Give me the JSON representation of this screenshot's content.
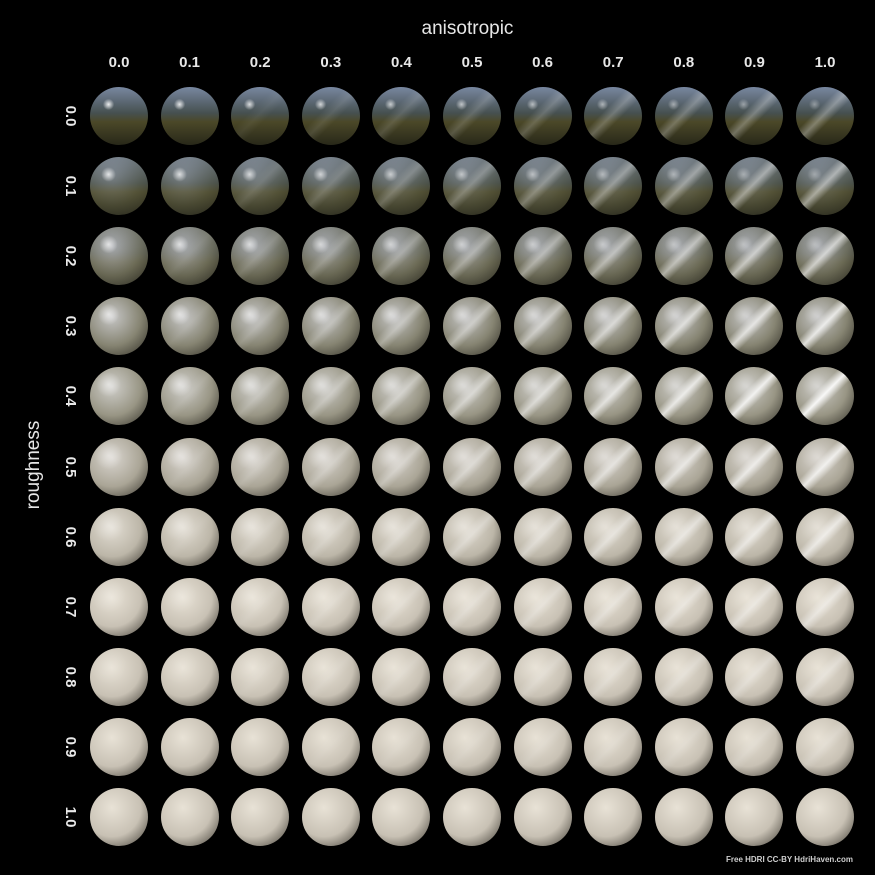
{
  "title": "anisotropic",
  "ylabel": "roughness",
  "anisotropic_values": [
    "0.0",
    "0.1",
    "0.2",
    "0.3",
    "0.4",
    "0.5",
    "0.6",
    "0.7",
    "0.8",
    "0.9",
    "1.0"
  ],
  "roughness_values": [
    "0.0",
    "0.1",
    "0.2",
    "0.3",
    "0.4",
    "0.5",
    "0.6",
    "0.7",
    "0.8",
    "0.9",
    "1.0"
  ],
  "credit": "Free HDRI CC-BY HdriHaven.com",
  "colors": {
    "background": "#000000",
    "diffuse": "#d8d2c6",
    "mirror_sky": "#8a96a8",
    "mirror_ground": "#4a4a2e"
  }
}
